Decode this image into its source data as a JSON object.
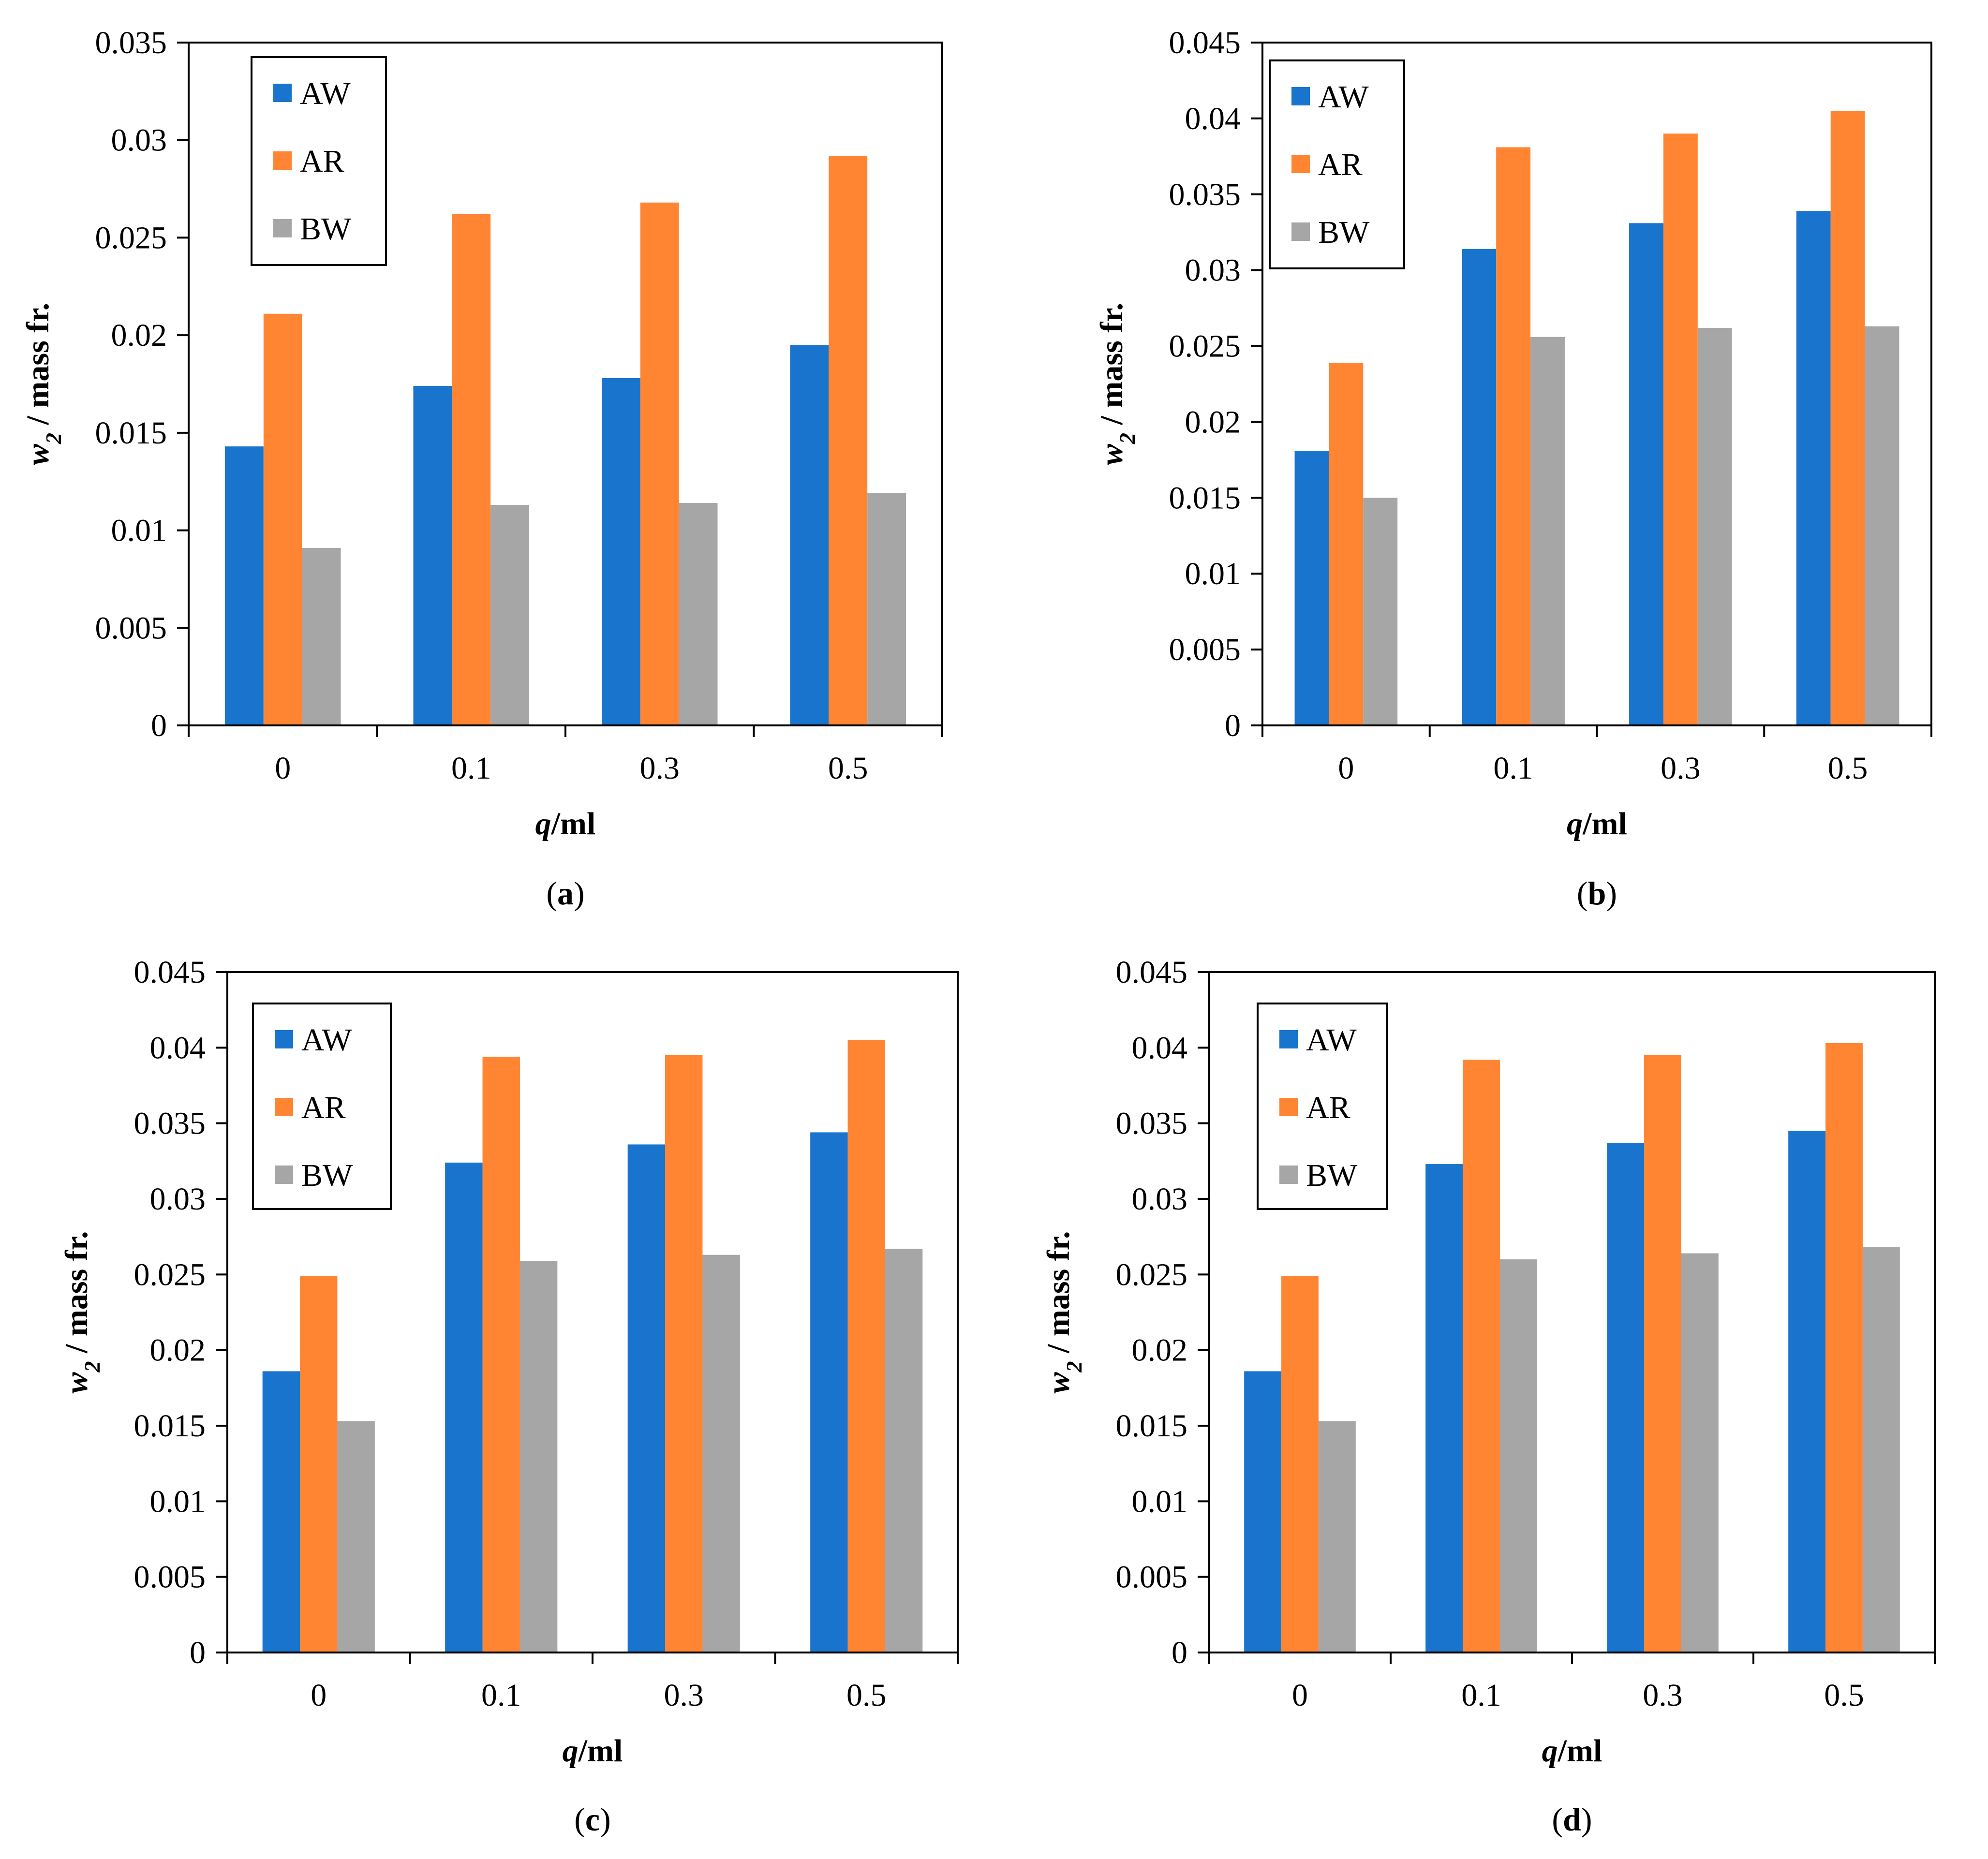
{
  "chart_data": [
    {
      "panel": "a",
      "type": "bar",
      "categories": [
        "0",
        "0.1",
        "0.3",
        "0.5"
      ],
      "series": [
        {
          "name": "AW",
          "values": [
            0.0143,
            0.0174,
            0.0178,
            0.0195
          ]
        },
        {
          "name": "AR",
          "values": [
            0.0211,
            0.0262,
            0.0268,
            0.0292
          ]
        },
        {
          "name": "BW",
          "values": [
            0.0091,
            0.0113,
            0.0114,
            0.0119
          ]
        }
      ],
      "xlabel": {
        "var": "q",
        "unit": "/ml"
      },
      "ylabel": {
        "var": "w",
        "sub": "2",
        "unit": " / mass fr."
      },
      "ylim": [
        0,
        0.035
      ],
      "yticks": [
        "0",
        "0.005",
        "0.01",
        "0.015",
        "0.02",
        "0.025",
        "0.03",
        "0.035"
      ],
      "legend_position": "top-left",
      "grid": false
    },
    {
      "panel": "b",
      "type": "bar",
      "categories": [
        "0",
        "0.1",
        "0.3",
        "0.5"
      ],
      "series": [
        {
          "name": "AW",
          "values": [
            0.0181,
            0.0314,
            0.0331,
            0.0339
          ]
        },
        {
          "name": "AR",
          "values": [
            0.0239,
            0.0381,
            0.039,
            0.0405
          ]
        },
        {
          "name": "BW",
          "values": [
            0.015,
            0.0256,
            0.0262,
            0.0263
          ]
        }
      ],
      "xlabel": {
        "var": "q",
        "unit": "/ml"
      },
      "ylabel": {
        "var": "w",
        "sub": "2",
        "unit": " / mass fr."
      },
      "ylim": [
        0,
        0.045
      ],
      "yticks": [
        "0",
        "0.005",
        "0.01",
        "0.015",
        "0.02",
        "0.025",
        "0.03",
        "0.035",
        "0.04",
        "0.045"
      ],
      "legend_position": "top-left",
      "grid": false
    },
    {
      "panel": "c",
      "type": "bar",
      "categories": [
        "0",
        "0.1",
        "0.3",
        "0.5"
      ],
      "series": [
        {
          "name": "AW",
          "values": [
            0.0186,
            0.0324,
            0.0336,
            0.0344
          ]
        },
        {
          "name": "AR",
          "values": [
            0.0249,
            0.0394,
            0.0395,
            0.0405
          ]
        },
        {
          "name": "BW",
          "values": [
            0.0153,
            0.0259,
            0.0263,
            0.0267
          ]
        }
      ],
      "xlabel": {
        "var": "q",
        "unit": "/ml"
      },
      "ylabel": {
        "var": "w",
        "sub": "2",
        "unit": " / mass fr."
      },
      "ylim": [
        0,
        0.045
      ],
      "yticks": [
        "0",
        "0.005",
        "0.01",
        "0.015",
        "0.02",
        "0.025",
        "0.03",
        "0.035",
        "0.04",
        "0.045"
      ],
      "legend_position": "top-left",
      "grid": false
    },
    {
      "panel": "d",
      "type": "bar",
      "categories": [
        "0",
        "0.1",
        "0.3",
        "0.5"
      ],
      "series": [
        {
          "name": "AW",
          "values": [
            0.0186,
            0.0323,
            0.0337,
            0.0345
          ]
        },
        {
          "name": "AR",
          "values": [
            0.0249,
            0.0392,
            0.0395,
            0.0403
          ]
        },
        {
          "name": "BW",
          "values": [
            0.0153,
            0.026,
            0.0264,
            0.0268
          ]
        }
      ],
      "xlabel": {
        "var": "q",
        "unit": "/ml"
      },
      "ylabel": {
        "var": "w",
        "sub": "2",
        "unit": " / mass fr."
      },
      "ylim": [
        0,
        0.045
      ],
      "yticks": [
        "0",
        "0.005",
        "0.01",
        "0.015",
        "0.02",
        "0.025",
        "0.03",
        "0.035",
        "0.04",
        "0.045"
      ],
      "legend_position": "top-left",
      "grid": false
    }
  ],
  "colors": {
    "AW": "#1874CD",
    "AR": "#FF8533",
    "BW": "#A6A6A6"
  }
}
